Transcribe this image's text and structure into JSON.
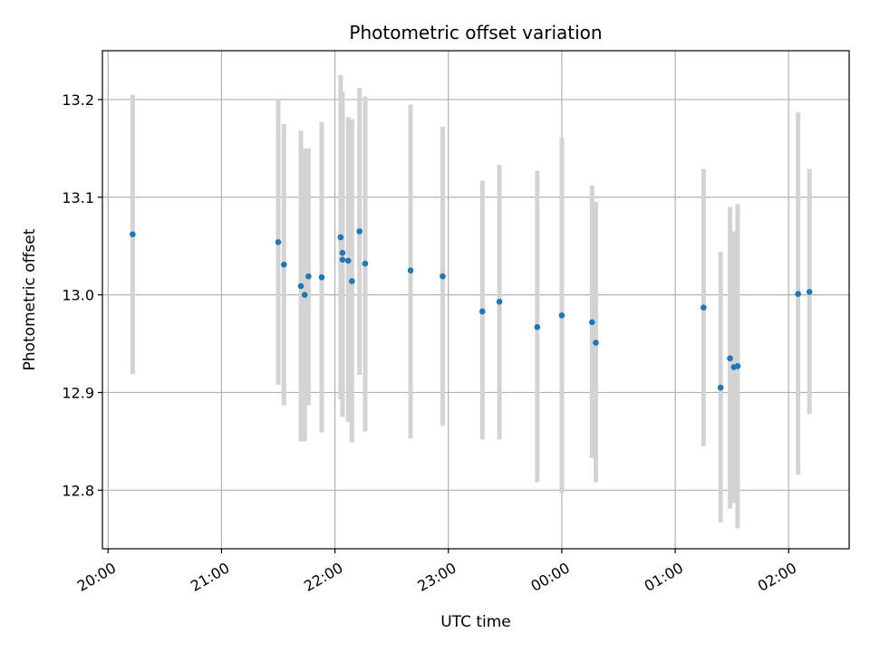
{
  "chart_data": {
    "type": "scatter",
    "title": "Photometric offset variation",
    "xlabel": "UTC time",
    "ylabel": "Photometric offset",
    "x_tick_labels": [
      "20:00",
      "21:00",
      "22:00",
      "23:00",
      "00:00",
      "01:00",
      "02:00"
    ],
    "y_tick_labels": [
      "12.8",
      "12.9",
      "13.0",
      "13.1",
      "13.2"
    ],
    "y_ticks": [
      12.8,
      12.9,
      13.0,
      13.1,
      13.2
    ],
    "ylim": [
      12.74,
      13.25
    ],
    "xlim_minutes_after_20h": [
      -3,
      392
    ],
    "grid": true,
    "colors": {
      "point": "#1f77b4",
      "errorbar": "#d3d3d3",
      "grid": "#b0b0b0"
    },
    "points": [
      {
        "x": "20:13",
        "y": 13.062,
        "err_low": 12.919,
        "err_high": 13.205
      },
      {
        "x": "21:30",
        "y": 13.054,
        "err_low": 12.908,
        "err_high": 13.2
      },
      {
        "x": "21:33",
        "y": 13.031,
        "err_low": 12.887,
        "err_high": 13.175
      },
      {
        "x": "21:42",
        "y": 13.009,
        "err_low": 12.85,
        "err_high": 13.168
      },
      {
        "x": "21:44",
        "y": 13.0,
        "err_low": 12.85,
        "err_high": 13.15
      },
      {
        "x": "21:46",
        "y": 13.019,
        "err_low": 12.887,
        "err_high": 13.15
      },
      {
        "x": "21:53",
        "y": 13.018,
        "err_low": 12.859,
        "err_high": 13.177
      },
      {
        "x": "22:03",
        "y": 13.059,
        "err_low": 12.893,
        "err_high": 13.225
      },
      {
        "x": "22:04",
        "y": 13.043,
        "err_low": 12.875,
        "err_high": 13.208
      },
      {
        "x": "22:04",
        "y": 13.036,
        "err_low": 12.875,
        "err_high": 13.2
      },
      {
        "x": "22:07",
        "y": 13.035,
        "err_low": 12.87,
        "err_high": 13.182
      },
      {
        "x": "22:09",
        "y": 13.014,
        "err_low": 12.849,
        "err_high": 13.18
      },
      {
        "x": "22:13",
        "y": 13.065,
        "err_low": 12.918,
        "err_high": 13.212
      },
      {
        "x": "22:16",
        "y": 13.032,
        "err_low": 12.86,
        "err_high": 13.203
      },
      {
        "x": "22:40",
        "y": 13.025,
        "err_low": 12.853,
        "err_high": 13.195
      },
      {
        "x": "22:57",
        "y": 13.019,
        "err_low": 12.866,
        "err_high": 13.172
      },
      {
        "x": "23:18",
        "y": 12.983,
        "err_low": 12.852,
        "err_high": 13.117
      },
      {
        "x": "23:27",
        "y": 12.993,
        "err_low": 12.852,
        "err_high": 13.133
      },
      {
        "x": "23:47",
        "y": 12.967,
        "err_low": 12.808,
        "err_high": 13.127
      },
      {
        "x": "00:00",
        "y": 12.979,
        "err_low": 12.797,
        "err_high": 13.161
      },
      {
        "x": "00:16",
        "y": 12.972,
        "err_low": 12.833,
        "err_high": 13.112
      },
      {
        "x": "00:18",
        "y": 12.951,
        "err_low": 12.808,
        "err_high": 13.095
      },
      {
        "x": "01:15",
        "y": 12.987,
        "err_low": 12.845,
        "err_high": 13.129
      },
      {
        "x": "01:24",
        "y": 12.905,
        "err_low": 12.767,
        "err_high": 13.044
      },
      {
        "x": "01:29",
        "y": 12.935,
        "err_low": 12.781,
        "err_high": 13.09
      },
      {
        "x": "01:31",
        "y": 12.926,
        "err_low": 12.787,
        "err_high": 13.065
      },
      {
        "x": "01:33",
        "y": 12.927,
        "err_low": 12.761,
        "err_high": 13.093
      },
      {
        "x": "02:05",
        "y": 13.001,
        "err_low": 12.816,
        "err_high": 13.187
      },
      {
        "x": "02:11",
        "y": 13.003,
        "err_low": 12.878,
        "err_high": 13.129
      }
    ]
  }
}
